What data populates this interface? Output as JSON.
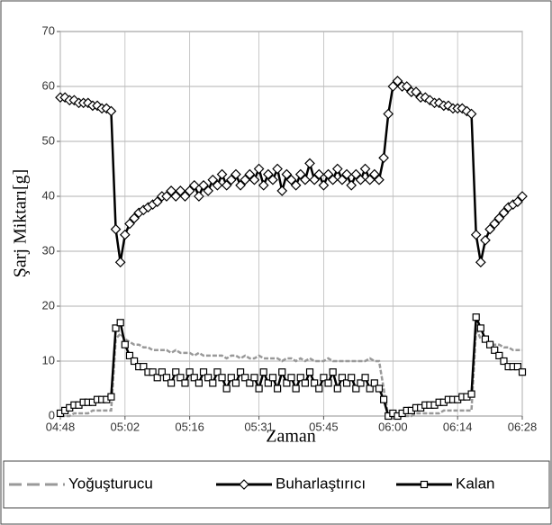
{
  "chart_data": {
    "type": "line",
    "x_label": "Zaman",
    "y_label": "Şarj Miktarı[g]",
    "x": [
      "04:48",
      "04:49",
      "04:50",
      "04:51",
      "04:52",
      "04:53",
      "04:54",
      "04:55",
      "04:56",
      "04:57",
      "04:58",
      "04:59",
      "05:00",
      "05:01",
      "05:02",
      "05:03",
      "05:04",
      "05:05",
      "05:06",
      "05:07",
      "05:08",
      "05:09",
      "05:10",
      "05:11",
      "05:12",
      "05:13",
      "05:14",
      "05:15",
      "05:16",
      "05:17",
      "05:18",
      "05:19",
      "05:20",
      "05:21",
      "05:22",
      "05:23",
      "05:24",
      "05:25",
      "05:26",
      "05:27",
      "05:28",
      "05:29",
      "05:30",
      "05:31",
      "05:32",
      "05:33",
      "05:34",
      "05:35",
      "05:36",
      "05:37",
      "05:38",
      "05:39",
      "05:40",
      "05:41",
      "05:42",
      "05:43",
      "05:44",
      "05:45",
      "05:46",
      "05:47",
      "05:48",
      "05:49",
      "05:50",
      "05:51",
      "05:52",
      "05:53",
      "05:54",
      "05:55",
      "05:56",
      "05:57",
      "05:58",
      "05:59",
      "06:00",
      "06:01",
      "06:02",
      "06:03",
      "06:04",
      "06:05",
      "06:06",
      "06:07",
      "06:08",
      "06:09",
      "06:10",
      "06:11",
      "06:12",
      "06:13",
      "06:14",
      "06:15",
      "06:16",
      "06:17",
      "06:18",
      "06:19",
      "06:20",
      "06:21",
      "06:22",
      "06:23",
      "06:24",
      "06:25",
      "06:26",
      "06:27",
      "06:28"
    ],
    "series": [
      {
        "name": "Yoğuşturucu",
        "color": "#999999",
        "dashed": true,
        "marker": "none",
        "values": [
          0,
          0,
          0,
          0.5,
          0.5,
          0.5,
          0.5,
          1,
          1,
          1,
          1,
          1,
          14,
          15,
          14,
          13.5,
          13,
          13,
          12.5,
          12.5,
          12,
          12,
          12,
          12,
          11.5,
          12,
          11.5,
          11.5,
          11.5,
          11,
          11.5,
          11,
          11,
          11,
          11,
          11,
          10.5,
          11,
          11,
          10.5,
          11,
          10.5,
          10.5,
          11,
          10.5,
          10.5,
          10.5,
          10.5,
          10,
          10.5,
          10.5,
          10,
          10.5,
          10,
          10.5,
          10,
          10,
          10,
          10.5,
          10,
          10,
          10,
          10,
          10,
          10,
          10,
          10,
          10.5,
          10,
          10,
          5,
          0,
          0,
          0,
          0,
          0,
          0,
          0.5,
          0.5,
          0.5,
          0.5,
          0.5,
          0.5,
          1,
          1,
          1,
          1,
          1,
          1,
          1,
          16,
          14,
          14,
          13,
          13,
          13,
          12.5,
          12.5,
          12,
          12,
          12
        ]
      },
      {
        "name": "Buharlaştırıcı",
        "color": "#000000",
        "dashed": false,
        "marker": "diamond",
        "values": [
          58,
          58,
          57.5,
          57.5,
          57,
          57,
          57,
          56.5,
          56.5,
          56,
          56,
          55.5,
          34,
          28,
          33,
          35,
          36,
          37,
          37.5,
          38,
          38.5,
          39,
          40,
          40,
          41,
          40,
          41,
          40,
          41,
          42,
          40,
          42,
          41,
          43,
          42,
          44,
          42,
          43,
          44,
          42,
          43,
          44,
          43,
          45,
          42,
          44,
          43,
          45,
          41,
          44,
          43,
          42,
          44,
          43,
          46,
          43,
          44,
          42,
          44,
          43,
          45,
          43,
          44,
          42,
          44,
          43,
          45,
          43,
          44,
          43,
          47,
          55,
          60,
          61,
          60,
          60,
          59,
          59,
          58,
          58,
          57.5,
          57,
          57,
          56.5,
          56.5,
          56,
          56,
          56,
          55.5,
          55,
          33,
          28,
          32,
          34,
          35,
          36,
          37,
          38,
          38.5,
          39,
          40
        ]
      },
      {
        "name": "Kalan",
        "color": "#000000",
        "dashed": false,
        "marker": "square",
        "values": [
          0.5,
          1,
          1.5,
          2,
          2,
          2.5,
          2.5,
          2.5,
          3,
          3,
          3,
          3.5,
          16,
          17,
          13,
          11,
          10,
          9,
          9,
          8,
          8,
          7,
          8,
          7,
          6,
          8,
          7,
          6,
          8,
          7,
          6,
          8,
          7,
          6,
          8,
          7,
          5,
          7,
          6,
          8,
          7,
          6,
          7,
          5,
          8,
          6,
          7,
          5,
          8,
          6,
          7,
          5,
          7,
          6,
          8,
          6,
          5,
          7,
          6,
          8,
          5,
          7,
          6,
          7,
          5,
          6,
          7,
          5,
          6,
          5,
          3,
          0,
          0.5,
          0,
          0.5,
          1,
          1,
          1.5,
          1.5,
          2,
          2,
          2,
          2.5,
          2.5,
          3,
          3,
          3,
          3.5,
          3.5,
          4,
          18,
          16,
          14,
          13,
          12,
          11,
          10,
          9,
          9,
          9,
          8
        ]
      }
    ],
    "xlim": [
      "04:48",
      "06:28"
    ],
    "xticks": [
      "04:48",
      "05:02",
      "05:16",
      "05:31",
      "05:45",
      "06:00",
      "06:14",
      "06:28"
    ],
    "ylim": [
      0,
      70
    ],
    "yticks": [
      0,
      10,
      20,
      30,
      40,
      50,
      60,
      70
    ],
    "grid": true,
    "legend": "bottom"
  }
}
